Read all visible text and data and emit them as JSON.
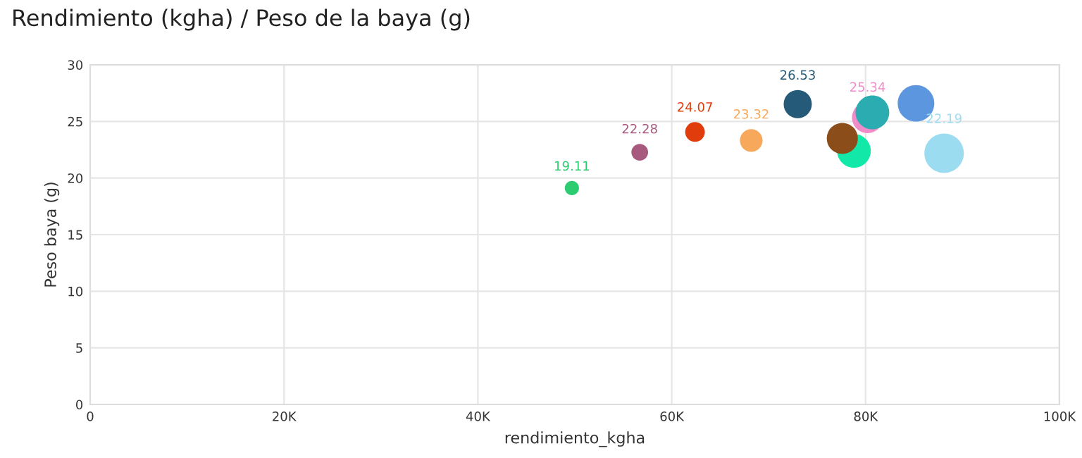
{
  "chart_data": {
    "type": "bubble",
    "title": "Rendimiento (kgha) / Peso de la baya (g)",
    "xlabel": "rendimiento_kgha",
    "ylabel": "Peso baya (g)",
    "x": [
      49700,
      56700,
      62400,
      68200,
      73000,
      78800,
      77600,
      80200,
      80700,
      85200,
      88100
    ],
    "values": [
      19.11,
      22.28,
      24.07,
      23.32,
      26.53,
      22.4,
      23.5,
      25.34,
      25.8,
      26.6,
      22.19
    ],
    "value_labels": [
      "19.11",
      "22.28",
      "24.07",
      "23.32",
      "26.53",
      null,
      null,
      "25.34",
      null,
      null,
      "22.19"
    ],
    "sizes": [
      0.13,
      0.18,
      0.25,
      0.33,
      0.51,
      0.73,
      0.62,
      0.62,
      0.73,
      0.86,
      1
    ],
    "colors": [
      "#2ecc71",
      "#a85a7e",
      "#e03c0c",
      "#f8a85a",
      "#255a78",
      "#12e8a8",
      "#8b4e1a",
      "#f08cc8",
      "#2aacb0",
      "#5b96de",
      "#9cdcf0"
    ],
    "xlim": [
      0,
      100000
    ],
    "xticks": [
      {
        "value": 0,
        "label": "0"
      },
      {
        "value": 20000,
        "label": "20K"
      },
      {
        "value": 40000,
        "label": "40K"
      },
      {
        "value": 60000,
        "label": "60K"
      },
      {
        "value": 80000,
        "label": "80K"
      },
      {
        "value": 100000,
        "label": "100K"
      }
    ],
    "ylim": [
      0,
      30
    ],
    "yticks": [
      0,
      5,
      10,
      15,
      20,
      25,
      30
    ],
    "grid": true
  }
}
